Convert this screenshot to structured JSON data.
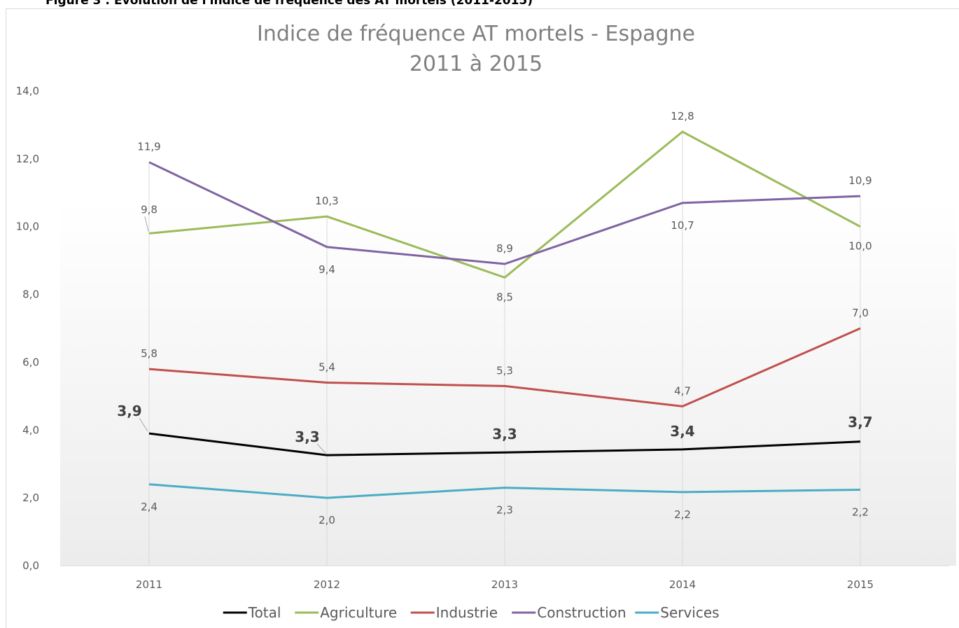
{
  "caption": "Figure 3 : Évolution de l'indice de fréquence des AT mortels (2011-2015)",
  "chart_data": {
    "type": "line",
    "title": "Indice de fréquence AT mortels - Espagne",
    "subtitle": "2011 à 2015",
    "categories": [
      "2011",
      "2012",
      "2013",
      "2014",
      "2015"
    ],
    "ylim": [
      0,
      14
    ],
    "yticks": [
      {
        "value": 0,
        "label": "0,0"
      },
      {
        "value": 2,
        "label": "2,0"
      },
      {
        "value": 4,
        "label": "4,0"
      },
      {
        "value": 6,
        "label": "6,0"
      },
      {
        "value": 8,
        "label": "8,0"
      },
      {
        "value": 10,
        "label": "10,0"
      },
      {
        "value": 12,
        "label": "12,0"
      },
      {
        "value": 14,
        "label": "14,0"
      }
    ],
    "legend": "bottom",
    "series": [
      {
        "name": "Total",
        "color": "#000000",
        "values": [
          3.9,
          3.26,
          3.34,
          3.43,
          3.66
        ],
        "value_labels": [
          "3,9",
          "3,3",
          "3,3",
          "3,4",
          "3,7"
        ]
      },
      {
        "name": "Agriculture",
        "color": "#9bbb59",
        "values": [
          9.8,
          10.3,
          8.5,
          12.8,
          10.0
        ],
        "value_labels": [
          "9,8",
          "10,3",
          "8,5",
          "12,8",
          "10,0"
        ]
      },
      {
        "name": "Industrie",
        "color": "#c0504d",
        "values": [
          5.8,
          5.4,
          5.3,
          4.7,
          7.0
        ],
        "value_labels": [
          "5,8",
          "5,4",
          "5,3",
          "4,7",
          "7,0"
        ]
      },
      {
        "name": "Construction",
        "color": "#8064a2",
        "values": [
          11.9,
          9.4,
          8.9,
          10.7,
          10.9
        ],
        "value_labels": [
          "11,9",
          "9,4",
          "8,9",
          "10,7",
          "10,9"
        ]
      },
      {
        "name": "Services",
        "color": "#4bacc6",
        "values": [
          2.4,
          2.0,
          2.3,
          2.17,
          2.24
        ],
        "value_labels": [
          "2,4",
          "2,0",
          "2,3",
          "2,2",
          "2,2"
        ]
      }
    ]
  }
}
